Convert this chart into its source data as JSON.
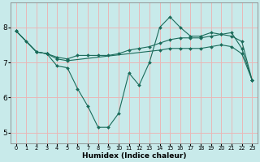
{
  "xlabel": "Humidex (Indice chaleur)",
  "bg_color": "#c8eaea",
  "grid_color": "#e8b8b8",
  "line_color": "#1a6b5a",
  "x_ticks": [
    0,
    1,
    2,
    3,
    4,
    5,
    6,
    7,
    8,
    9,
    10,
    11,
    12,
    13,
    14,
    15,
    16,
    17,
    18,
    19,
    20,
    21,
    22,
    23
  ],
  "ylim": [
    4.7,
    8.7
  ],
  "xlim": [
    -0.5,
    23.5
  ],
  "line1_x": [
    0,
    1,
    2,
    3,
    4,
    5,
    6,
    7,
    8,
    9,
    10,
    11,
    12,
    13,
    14,
    15,
    16,
    17,
    18,
    19,
    20,
    21,
    22,
    23
  ],
  "line1_y": [
    7.9,
    7.6,
    7.3,
    7.25,
    6.9,
    6.85,
    6.25,
    5.75,
    5.15,
    5.15,
    5.55,
    6.7,
    6.35,
    7.0,
    8.0,
    8.3,
    8.0,
    7.75,
    7.75,
    7.85,
    7.8,
    7.85,
    7.4,
    6.5
  ],
  "line2_x": [
    0,
    2,
    3,
    4,
    5,
    6,
    7,
    8,
    9,
    10,
    11,
    12,
    13,
    14,
    15,
    16,
    17,
    18,
    19,
    20,
    21,
    22,
    23
  ],
  "line2_y": [
    7.9,
    7.3,
    7.25,
    7.15,
    7.1,
    7.2,
    7.2,
    7.2,
    7.2,
    7.25,
    7.35,
    7.4,
    7.45,
    7.55,
    7.65,
    7.7,
    7.7,
    7.7,
    7.75,
    7.8,
    7.75,
    7.6,
    6.5
  ],
  "line3_x": [
    0,
    2,
    3,
    4,
    5,
    14,
    15,
    16,
    17,
    18,
    19,
    20,
    21,
    22,
    23
  ],
  "line3_y": [
    7.9,
    7.3,
    7.25,
    7.1,
    7.05,
    7.35,
    7.4,
    7.4,
    7.4,
    7.4,
    7.45,
    7.5,
    7.45,
    7.25,
    6.5
  ]
}
